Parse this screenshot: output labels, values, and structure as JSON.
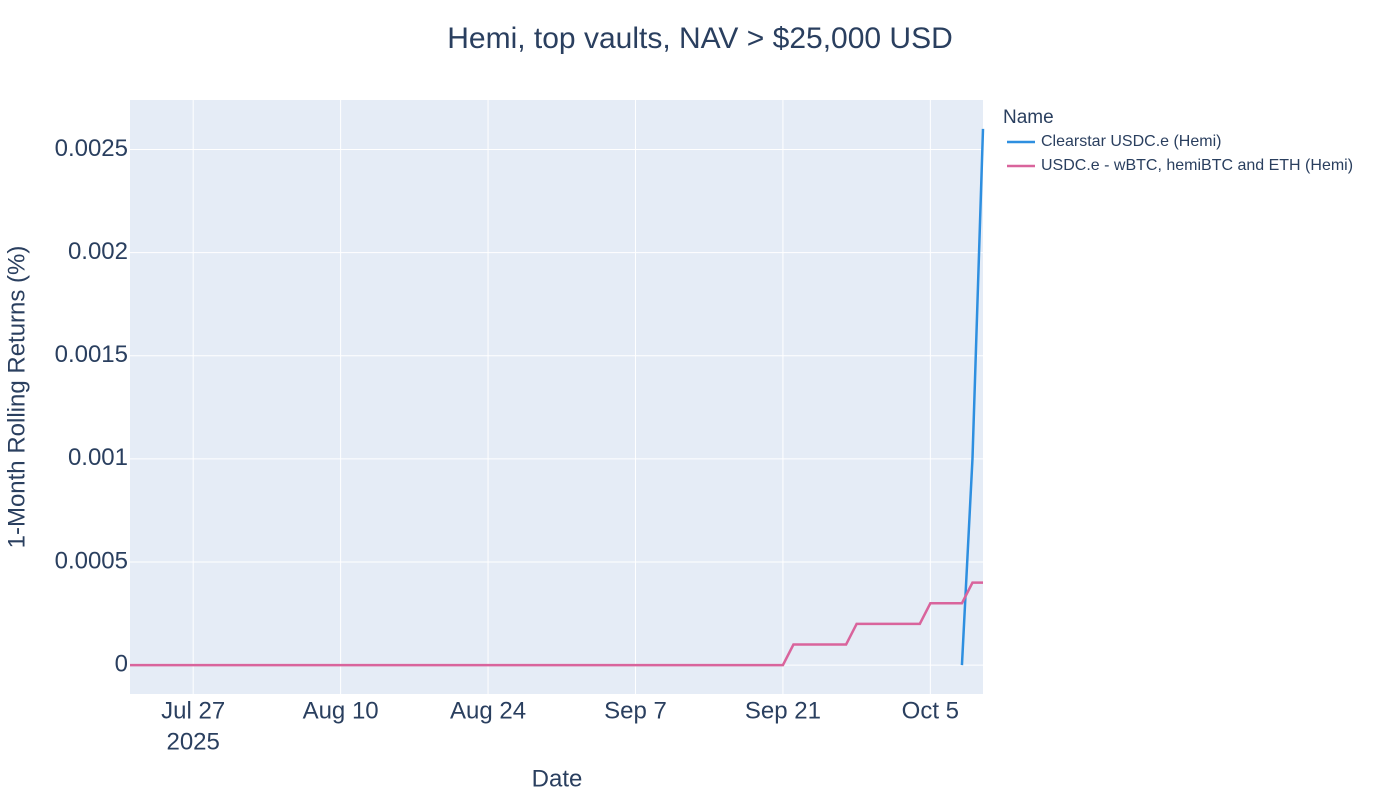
{
  "chart_data": {
    "type": "line",
    "title": "Hemi, top vaults, NAV > $25,000 USD",
    "x_label": "Date",
    "y_label": "1-Month Rolling Returns (%)",
    "legend_title": "Name",
    "x_year_label": "2025",
    "xlim": [
      "2025-07-21",
      "2025-10-10"
    ],
    "xticks": [
      {
        "value": "2025-07-27",
        "label": "Jul 27"
      },
      {
        "value": "2025-08-10",
        "label": "Aug 10"
      },
      {
        "value": "2025-08-24",
        "label": "Aug 24"
      },
      {
        "value": "2025-09-07",
        "label": "Sep 7"
      },
      {
        "value": "2025-09-21",
        "label": "Sep 21"
      },
      {
        "value": "2025-10-05",
        "label": "Oct 5"
      }
    ],
    "ylim": [
      -0.00014,
      0.00274
    ],
    "yticks": [
      0,
      0.0005,
      0.001,
      0.0015,
      0.002,
      0.0025
    ],
    "grid": true,
    "legend": "right",
    "series": [
      {
        "name": "Clearstar USDC.e (Hemi)",
        "color": "#2e8fe0",
        "x": [
          "2025-10-08",
          "2025-10-09",
          "2025-10-10"
        ],
        "values": [
          0,
          0.001,
          0.0026
        ]
      },
      {
        "name": "USDC.e - wBTC, hemiBTC and ETH (Hemi)",
        "color": "#d9649c",
        "x": [
          "2025-07-21",
          "2025-09-21",
          "2025-09-22",
          "2025-09-27",
          "2025-09-28",
          "2025-10-04",
          "2025-10-05",
          "2025-10-08",
          "2025-10-09",
          "2025-10-10"
        ],
        "values": [
          0,
          0,
          0.0001,
          0.0001,
          0.0002,
          0.0002,
          0.0003,
          0.0003,
          0.0004,
          0.0004
        ]
      }
    ]
  }
}
